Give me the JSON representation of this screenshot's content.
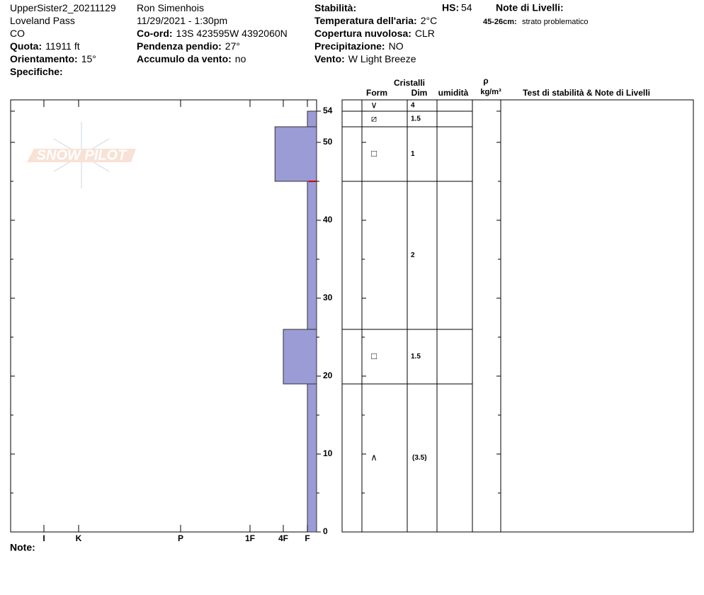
{
  "header": {
    "left": [
      {
        "value": "UpperSister2_20211129"
      },
      {
        "value": "Loveland Pass"
      },
      {
        "value": "CO"
      },
      {
        "label": "Quota:",
        "value": "11911 ft"
      },
      {
        "label": "Orientamento:",
        "value": "15°"
      },
      {
        "label": "Specifiche:"
      }
    ],
    "middle": [
      {
        "value": "Ron Simenhois"
      },
      {
        "value": "11/29/2021 - 1:30pm"
      },
      {
        "label": "Co-ord:",
        "value": "13S 423595W 4392060N"
      },
      {
        "label": "Pendenza pendio:",
        "value": "27°"
      },
      {
        "label": "Accumulo da vento:",
        "value": "no"
      }
    ],
    "right": [
      {
        "label": "Stabilità:"
      },
      {
        "label": "Temperatura dell'aria:",
        "value": "2°C"
      },
      {
        "label": "Copertura nuvolosa:",
        "value": "CLR"
      },
      {
        "label": "Precipitazione:",
        "value": "NO"
      },
      {
        "label": "Vento:",
        "value": "W Light Breeze"
      }
    ],
    "hs_label": "HS:",
    "hs": 54,
    "notes_title": "Note di Livelli:",
    "notes": [
      {
        "label": "45-26cm:",
        "value": "strato problematico"
      }
    ]
  },
  "footer": "Note:",
  "watermark": "SNOW PILOT",
  "chart_data": {
    "type": "snowpit",
    "ylim": [
      0,
      55.45
    ],
    "yticks": [
      0,
      10,
      20,
      30,
      40,
      50,
      54
    ],
    "minor_yticks": [
      5,
      15,
      25,
      35,
      45
    ],
    "xticks": [
      {
        "value": 6,
        "label": "I"
      },
      {
        "value": 5,
        "label": "K"
      },
      {
        "value": 4,
        "label": "P"
      },
      {
        "value": 3,
        "label": "1F"
      },
      {
        "value": 2,
        "label": "4F"
      },
      {
        "value": 1,
        "label": "F"
      }
    ],
    "color": "#9b9bd6",
    "problem_mark": 45,
    "columns": {
      "group": "Cristalli",
      "form": "Form",
      "size": "Dim",
      "wetness": "umidità",
      "density": "ρ",
      "density_unit": "kg/m³",
      "notes": "Test di stabilità & Note di Livelli"
    },
    "surface": {
      "form": "∨",
      "size": "4"
    },
    "layers": [
      {
        "bottom": 0,
        "top": 19,
        "hardness": 1,
        "form": "∧",
        "size": "(3.5)"
      },
      {
        "bottom": 19,
        "top": 26,
        "hardness": 2,
        "form": "□",
        "size": "1.5"
      },
      {
        "bottom": 26,
        "top": 45,
        "hardness": 1,
        "size": "2"
      },
      {
        "bottom": 45,
        "top": 52,
        "hardness": 2.25,
        "form": "□",
        "size": "1"
      },
      {
        "bottom": 52,
        "top": 54,
        "hardness": 1,
        "form": "⧄",
        "size": "1.5"
      }
    ]
  }
}
